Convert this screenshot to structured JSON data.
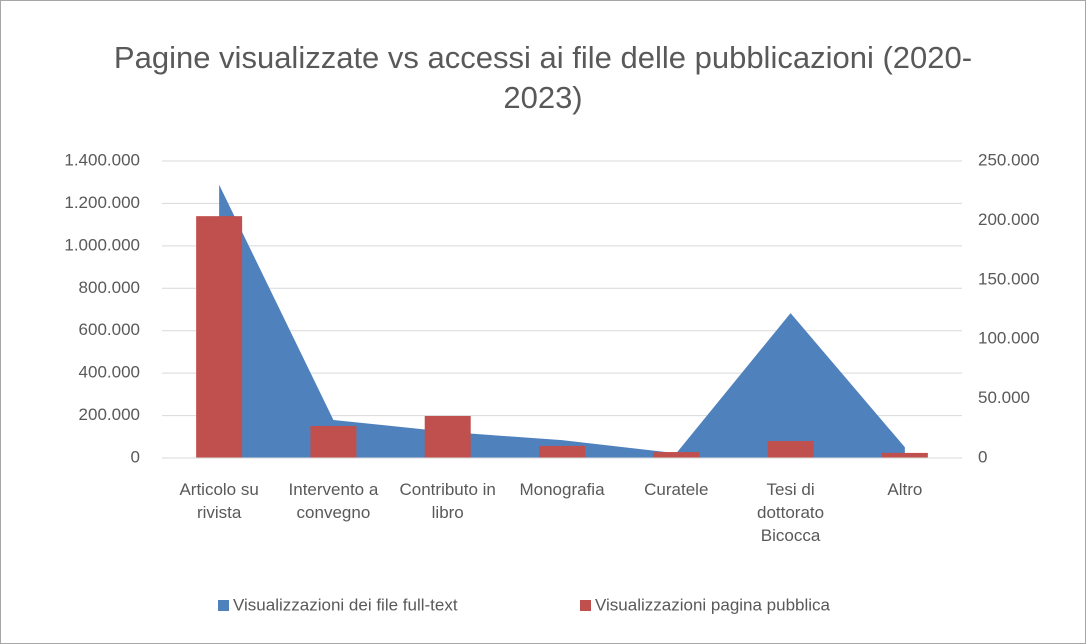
{
  "chart_data": {
    "type": "combo",
    "title": "Pagine visualizzate vs accessi ai file delle pubblicazioni (2020-2023)",
    "categories": [
      "Articolo su rivista",
      "Intervento a convegno",
      "Contributo in libro",
      "Monografia",
      "Curatele",
      "Tesi di dottorato Bicocca",
      "Altro"
    ],
    "series": [
      {
        "name": "Visualizzazioni dei file full-text",
        "type": "area",
        "color": "#4f81bd",
        "axis": "y2",
        "values": [
          230000,
          32000,
          22000,
          15000,
          4000,
          122000,
          9000
        ]
      },
      {
        "name": "Visualizzazioni pagina pubblica",
        "type": "bar",
        "color": "#c0504d",
        "axis": "y",
        "values": [
          1140000,
          151000,
          198000,
          57000,
          28000,
          80000,
          24000
        ]
      }
    ],
    "ylim": [
      0,
      1400000
    ],
    "yticks": [
      0,
      {
        "value": 200000,
        "label": "200.000"
      },
      {
        "value": 400000,
        "label": "400.000"
      },
      {
        "value": 600000,
        "label": "600.000"
      },
      {
        "value": 800000,
        "label": "800.000"
      },
      {
        "value": 1000000,
        "label": "1.000.000"
      },
      {
        "value": 1200000,
        "label": "1.200.000"
      },
      {
        "value": 1400000,
        "label": "1.400.000"
      }
    ],
    "y2lim": [
      0,
      250000
    ],
    "y2ticks": [
      0,
      {
        "value": 50000,
        "label": "50.000"
      },
      {
        "value": 100000,
        "label": "100.000"
      },
      {
        "value": 150000,
        "label": "150.000"
      },
      {
        "value": 200000,
        "label": "200.000"
      },
      {
        "value": 250000,
        "label": "250.000"
      }
    ],
    "grid": true,
    "legend": "bottom"
  }
}
